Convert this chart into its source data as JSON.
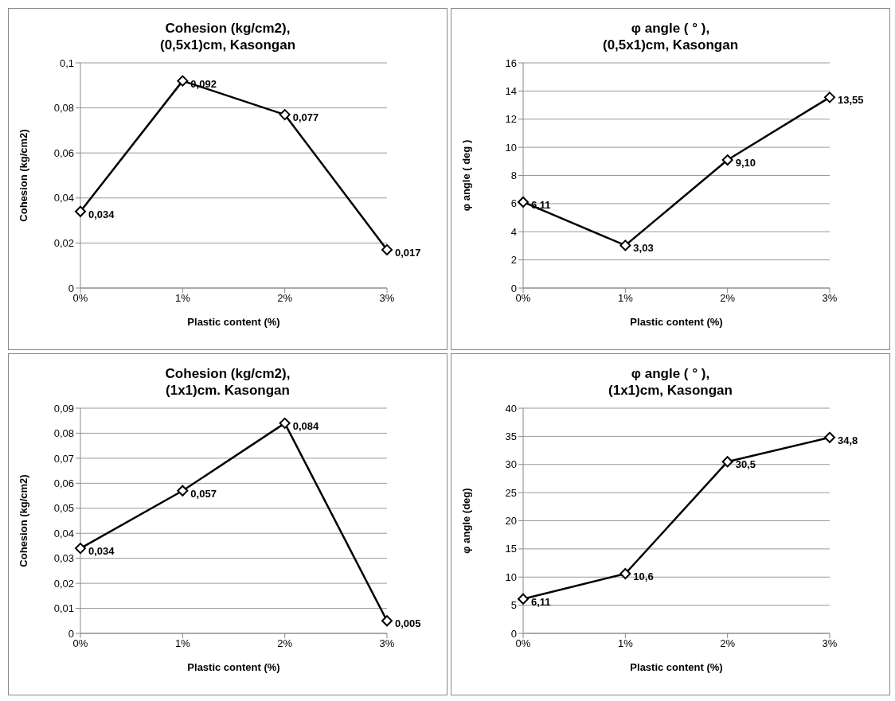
{
  "chart_data": [
    {
      "type": "line",
      "title": "Cohesion (kg/cm2),\n(0,5x1)cm, Kasongan",
      "xlabel": "Plastic content (%)",
      "ylabel": "Cohesion (kg/cm2)",
      "categories": [
        "0%",
        "1%",
        "2%",
        "3%"
      ],
      "series": [
        {
          "color": "#000000",
          "values": [
            0.034,
            0.092,
            0.077,
            0.017
          ],
          "value_labels": [
            "0,034",
            "0,092",
            "0,077",
            "0,017"
          ]
        }
      ],
      "ylim": [
        0,
        0.1
      ],
      "yticks": [
        0,
        {
          "value": 0.02,
          "label": "0,02"
        },
        {
          "value": 0.04,
          "label": "0,04"
        },
        {
          "value": 0.06,
          "label": "0,06"
        },
        {
          "value": 0.08,
          "label": "0,08"
        },
        {
          "value": 0.1,
          "label": "0,1"
        }
      ],
      "grid": "y",
      "marker": "diamond",
      "line_style": "solid"
    },
    {
      "type": "line",
      "title": "φ angle ( ° ),\n(0,5x1)cm, Kasongan",
      "xlabel": "Plastic content (%)",
      "ylabel": "φ angle ( deg )",
      "categories": [
        "0%",
        "1%",
        "2%",
        "3%"
      ],
      "series": [
        {
          "color": "#000000",
          "values": [
            6.11,
            3.03,
            9.1,
            13.55
          ],
          "value_labels": [
            "6,11",
            "3,03",
            "9,10",
            "13,55"
          ]
        }
      ],
      "ylim": [
        0,
        16
      ],
      "yticks": [
        0,
        2,
        4,
        6,
        8,
        10,
        12,
        14,
        16
      ],
      "grid": "y",
      "marker": "diamond",
      "line_style": "solid"
    },
    {
      "type": "line",
      "title": "Cohesion (kg/cm2),\n(1x1)cm. Kasongan",
      "xlabel": "Plastic content (%)",
      "ylabel": "Cohesion (kg/cm2)",
      "categories": [
        "0%",
        "1%",
        "2%",
        "3%"
      ],
      "series": [
        {
          "color": "#000000",
          "values": [
            0.034,
            0.057,
            0.084,
            0.005
          ],
          "value_labels": [
            "0,034",
            "0,057",
            "0,084",
            "0,005"
          ]
        }
      ],
      "ylim": [
        0,
        0.09
      ],
      "yticks": [
        0,
        {
          "value": 0.01,
          "label": "0,01"
        },
        {
          "value": 0.02,
          "label": "0,02"
        },
        {
          "value": 0.03,
          "label": "0,03"
        },
        {
          "value": 0.04,
          "label": "0,04"
        },
        {
          "value": 0.05,
          "label": "0,05"
        },
        {
          "value": 0.06,
          "label": "0,06"
        },
        {
          "value": 0.07,
          "label": "0,07"
        },
        {
          "value": 0.08,
          "label": "0,08"
        },
        {
          "value": 0.09,
          "label": "0,09"
        }
      ],
      "grid": "y",
      "marker": "diamond",
      "line_style": "solid"
    },
    {
      "type": "line",
      "title": "φ angle ( ° ),\n(1x1)cm, Kasongan",
      "xlabel": "Plastic content (%)",
      "ylabel": "φ angle (deg)",
      "categories": [
        "0%",
        "1%",
        "2%",
        "3%"
      ],
      "series": [
        {
          "color": "#000000",
          "values": [
            6.11,
            10.6,
            30.5,
            34.8
          ],
          "value_labels": [
            "6,11",
            "10,6",
            "30,5",
            "34,8"
          ]
        }
      ],
      "ylim": [
        0,
        40
      ],
      "yticks": [
        0,
        5,
        10,
        15,
        20,
        25,
        30,
        35,
        40
      ],
      "grid": "y",
      "marker": "diamond",
      "line_style": "solid"
    }
  ]
}
